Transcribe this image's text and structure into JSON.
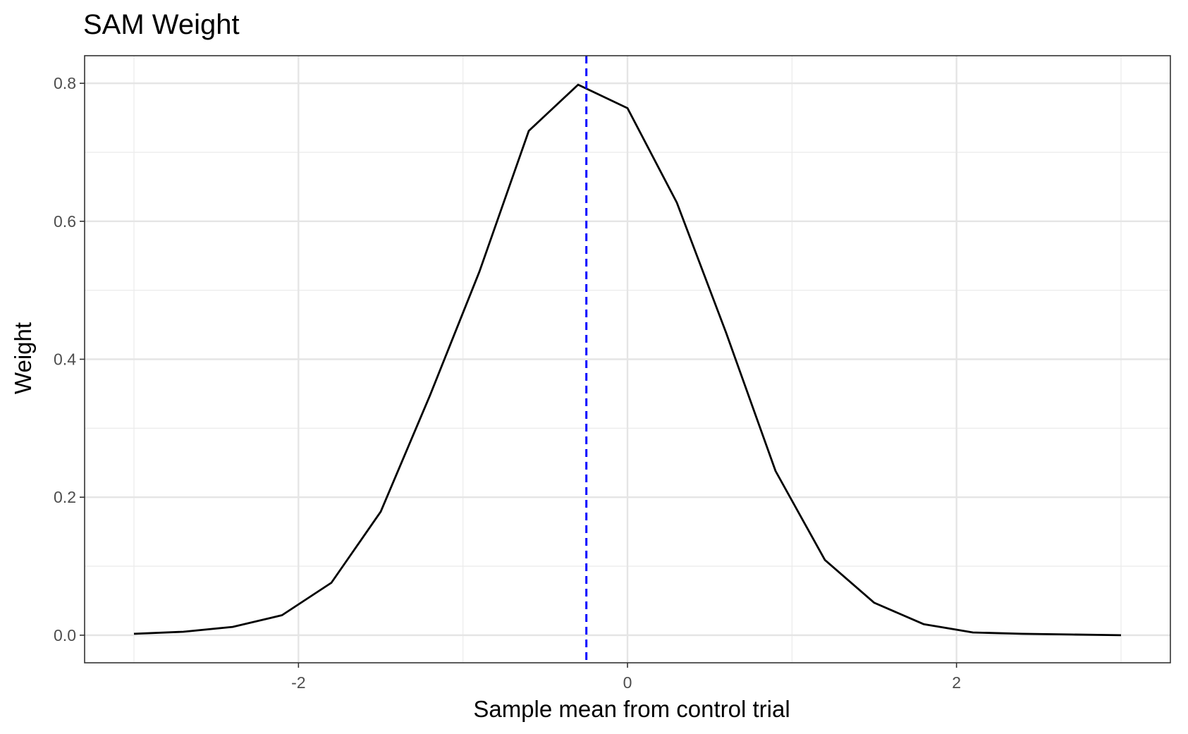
{
  "chart_data": {
    "type": "line",
    "title": "SAM Weight",
    "xlabel": "Sample mean from control trial",
    "ylabel": "Weight",
    "xlim": [
      -3.3,
      3.3
    ],
    "ylim": [
      -0.04,
      0.84
    ],
    "x_ticks": [
      -2,
      0,
      2
    ],
    "x_tick_labels": [
      "-2",
      "0",
      "2"
    ],
    "y_ticks": [
      0.0,
      0.2,
      0.4,
      0.6,
      0.8
    ],
    "y_tick_labels": [
      "0.0",
      "0.2",
      "0.4",
      "0.6",
      "0.8"
    ],
    "grid": true,
    "series": [
      {
        "x": [
          -3.0,
          -2.7,
          -2.4,
          -2.1,
          -1.8,
          -1.5,
          -1.2,
          -0.9,
          -0.6,
          -0.3,
          0.0,
          0.3,
          0.6,
          0.9,
          1.2,
          1.5,
          1.8,
          2.1,
          2.4,
          2.7,
          3.0
        ],
        "values": [
          0.002,
          0.005,
          0.012,
          0.029,
          0.076,
          0.179,
          0.348,
          0.527,
          0.731,
          0.798,
          0.764,
          0.627,
          0.438,
          0.238,
          0.109,
          0.047,
          0.016,
          0.004,
          0.002,
          0.001,
          0.0
        ],
        "color": "#000000"
      }
    ],
    "reference_line": {
      "orientation": "vertical",
      "x": -0.25,
      "color": "#0000ff",
      "style": "dashed"
    }
  }
}
